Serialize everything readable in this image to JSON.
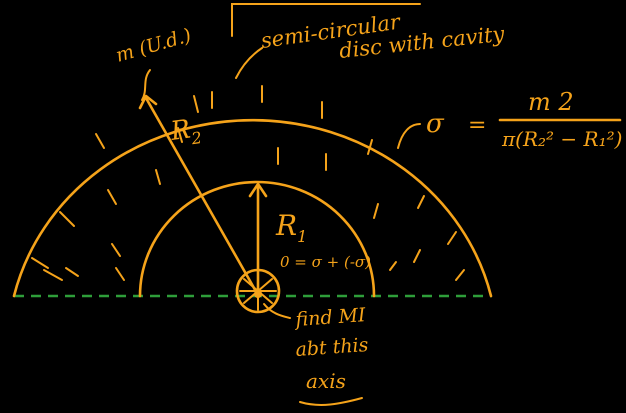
{
  "colors": {
    "background": "#000000",
    "ink": "#f5a31a",
    "axis": "#2e9e3a"
  },
  "labels": {
    "note_mass": "m (U.d.)",
    "title_line1": "semi-circular",
    "title_line2": "disc with cavity",
    "radius_outer": "R",
    "radius_outer_sub": "2",
    "radius_inner": "R",
    "radius_inner_sub": "1",
    "zero_eq": "0 = σ + (-σ)",
    "sigma": "σ",
    "equals": "=",
    "numerator": "m 2",
    "denominator": "π(R₂² − R₁²)",
    "note_line1": "find MI",
    "note_line2": "abt this",
    "note_line3": "axis"
  }
}
